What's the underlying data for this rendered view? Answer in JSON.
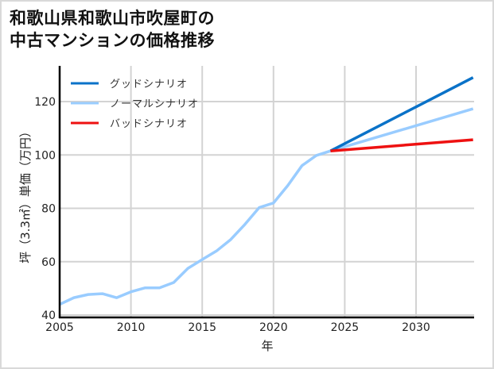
{
  "title": {
    "line1": "和歌山県和歌山市吹屋町の",
    "line2": "中古マンションの価格推移"
  },
  "chart_data": {
    "type": "line",
    "title": "和歌山県和歌山市吹屋町の中古マンションの価格推移",
    "xlabel": "年",
    "ylabel": "坪（3.3㎡）単価（万円）",
    "xlim": [
      2005,
      2034
    ],
    "ylim": [
      40,
      133
    ],
    "x_ticks": [
      2005,
      2010,
      2015,
      2020,
      2025,
      2030
    ],
    "y_ticks": [
      40,
      60,
      80,
      100,
      120
    ],
    "grid": true,
    "legend_position": "upper left",
    "series": [
      {
        "name": "グッドシナリオ",
        "color": "#0a72c8",
        "x": [
          2024,
          2034
        ],
        "values": [
          101.5,
          129
        ]
      },
      {
        "name": "ノーマルシナリオ",
        "color": "#99ccff",
        "x": [
          2005,
          2006,
          2007,
          2008,
          2009,
          2010,
          2011,
          2012,
          2013,
          2014,
          2015,
          2016,
          2017,
          2018,
          2019,
          2020,
          2021,
          2022,
          2023,
          2024,
          2034
        ],
        "values": [
          44,
          46.5,
          47.7,
          48,
          46.5,
          48.7,
          50.2,
          50.2,
          52.2,
          57.5,
          60.8,
          64,
          68.3,
          74,
          80.3,
          82,
          88.5,
          96,
          99.8,
          101.5,
          117.3
        ]
      },
      {
        "name": "バッドシナリオ",
        "color": "#ee1111",
        "x": [
          2024,
          2034
        ],
        "values": [
          101.5,
          105.7
        ]
      }
    ]
  },
  "legend": {
    "items": [
      {
        "label": "グッドシナリオ",
        "color": "#0a72c8"
      },
      {
        "label": "ノーマルシナリオ",
        "color": "#99ccff"
      },
      {
        "label": "バッドシナリオ",
        "color": "#ee1111"
      }
    ]
  }
}
